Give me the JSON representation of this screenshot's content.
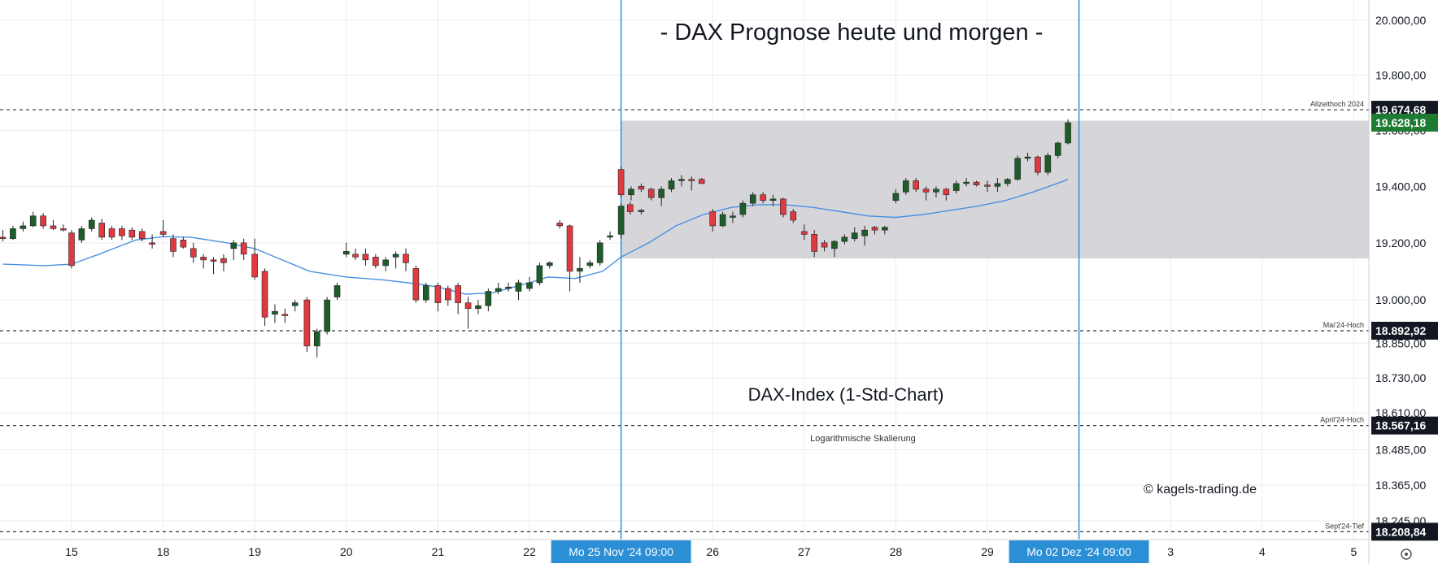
{
  "chart_data": {
    "type": "candlestick",
    "title": "- DAX Prognose heute und morgen -",
    "subtitle": "DAX-Index (1-Std-Chart)",
    "scale_note": "Logarithmische Skalierung",
    "credit": "© kagels-trading.de",
    "y_scale": "log",
    "ylim": [
      18180,
      20030
    ],
    "y_ticks": [
      {
        "value": 20000,
        "label": "20.000,00"
      },
      {
        "value": 19800,
        "label": "19.800,00"
      },
      {
        "value": 19600,
        "label": "19.600,00"
      },
      {
        "value": 19400,
        "label": "19.400,00"
      },
      {
        "value": 19200,
        "label": "19.200,00"
      },
      {
        "value": 19000,
        "label": "19.000,00"
      },
      {
        "value": 18850,
        "label": "18.850,00"
      },
      {
        "value": 18730,
        "label": "18.730,00"
      },
      {
        "value": 18610,
        "label": "18.610,00"
      },
      {
        "value": 18485,
        "label": "18.485,00"
      },
      {
        "value": 18365,
        "label": "18.365,00"
      },
      {
        "value": 18245,
        "label": "18.245,00"
      }
    ],
    "x_ticks": [
      {
        "day": 0,
        "label": "15"
      },
      {
        "day": 1,
        "label": "18"
      },
      {
        "day": 2,
        "label": "19"
      },
      {
        "day": 3,
        "label": "20"
      },
      {
        "day": 4,
        "label": "21"
      },
      {
        "day": 5,
        "label": "22"
      },
      {
        "day": 7,
        "label": "26"
      },
      {
        "day": 8,
        "label": "27"
      },
      {
        "day": 9,
        "label": "28"
      },
      {
        "day": 10,
        "label": "29"
      },
      {
        "day": 12,
        "label": "3"
      },
      {
        "day": 13,
        "label": "4"
      },
      {
        "day": 14,
        "label": "5"
      }
    ],
    "x_markers": [
      {
        "day": 6.0,
        "label": "Mo 25 Nov '24   09:00"
      },
      {
        "day": 11.0,
        "label": "Mo 02 Dez '24   09:00"
      }
    ],
    "levels": [
      {
        "name": "Allzeithoch 2024",
        "value": 19674.68,
        "label": "19.674,68",
        "color": "#131722",
        "line": "dashed"
      },
      {
        "name": "",
        "value": 19628.18,
        "label": "19.628,18",
        "color": "#1e7b33",
        "line": "none"
      },
      {
        "name": "Mai'24-Hoch",
        "value": 18892.92,
        "label": "18.892,92",
        "color": "#131722",
        "line": "dashed"
      },
      {
        "name": "April'24-Hoch",
        "value": 18567.16,
        "label": "18.567,16",
        "color": "#131722",
        "line": "dashed"
      },
      {
        "name": "Sept'24-Tief",
        "value": 18208.84,
        "label": "18.208,84",
        "color": "#131722",
        "line": "dashed"
      }
    ],
    "zone": {
      "low": 19145,
      "high": 19635,
      "from_day": 6.0,
      "to_day": 15.2,
      "color": "#d4d4d8"
    },
    "colors": {
      "up": "#1e5c2a",
      "down": "#e0393f",
      "ma": "#4a90e2",
      "marker": "#2b8fd6",
      "badge": "#2b8fd6"
    },
    "candles": [
      {
        "t": -0.75,
        "o": 19220,
        "h": 19245,
        "l": 19205,
        "c": 19215
      },
      {
        "t": -0.64,
        "o": 19215,
        "h": 19260,
        "l": 19210,
        "c": 19250
      },
      {
        "t": -0.53,
        "o": 19250,
        "h": 19275,
        "l": 19240,
        "c": 19260
      },
      {
        "t": -0.42,
        "o": 19260,
        "h": 19310,
        "l": 19255,
        "c": 19295
      },
      {
        "t": -0.31,
        "o": 19295,
        "h": 19305,
        "l": 19250,
        "c": 19260
      },
      {
        "t": -0.2,
        "o": 19260,
        "h": 19280,
        "l": 19245,
        "c": 19250
      },
      {
        "t": -0.09,
        "o": 19250,
        "h": 19265,
        "l": 19240,
        "c": 19245
      },
      {
        "t": 0.0,
        "o": 19235,
        "h": 19245,
        "l": 19110,
        "c": 19120
      },
      {
        "t": 0.11,
        "o": 19210,
        "h": 19260,
        "l": 19200,
        "c": 19250
      },
      {
        "t": 0.22,
        "o": 19250,
        "h": 19290,
        "l": 19240,
        "c": 19280
      },
      {
        "t": 0.33,
        "o": 19270,
        "h": 19285,
        "l": 19210,
        "c": 19220
      },
      {
        "t": 0.44,
        "o": 19250,
        "h": 19260,
        "l": 19210,
        "c": 19220
      },
      {
        "t": 0.55,
        "o": 19250,
        "h": 19260,
        "l": 19210,
        "c": 19225
      },
      {
        "t": 0.66,
        "o": 19245,
        "h": 19255,
        "l": 19210,
        "c": 19220
      },
      {
        "t": 0.77,
        "o": 19240,
        "h": 19250,
        "l": 19205,
        "c": 19215
      },
      {
        "t": 0.88,
        "o": 19200,
        "h": 19230,
        "l": 19180,
        "c": 19195
      },
      {
        "t": 1.0,
        "o": 19240,
        "h": 19280,
        "l": 19220,
        "c": 19230
      },
      {
        "t": 1.11,
        "o": 19215,
        "h": 19230,
        "l": 19150,
        "c": 19170
      },
      {
        "t": 1.22,
        "o": 19210,
        "h": 19220,
        "l": 19180,
        "c": 19185
      },
      {
        "t": 1.33,
        "o": 19180,
        "h": 19200,
        "l": 19130,
        "c": 19150
      },
      {
        "t": 1.44,
        "o": 19150,
        "h": 19160,
        "l": 19110,
        "c": 19140
      },
      {
        "t": 1.55,
        "o": 19140,
        "h": 19150,
        "l": 19090,
        "c": 19135
      },
      {
        "t": 1.66,
        "o": 19145,
        "h": 19160,
        "l": 19100,
        "c": 19130
      },
      {
        "t": 1.77,
        "o": 19180,
        "h": 19210,
        "l": 19140,
        "c": 19200
      },
      {
        "t": 1.88,
        "o": 19200,
        "h": 19215,
        "l": 19140,
        "c": 19160
      },
      {
        "t": 2.0,
        "o": 19160,
        "h": 19215,
        "l": 19070,
        "c": 19080
      },
      {
        "t": 2.11,
        "o": 19100,
        "h": 19110,
        "l": 18910,
        "c": 18940
      },
      {
        "t": 2.22,
        "o": 18950,
        "h": 18985,
        "l": 18920,
        "c": 18960
      },
      {
        "t": 2.33,
        "o": 18950,
        "h": 18970,
        "l": 18920,
        "c": 18945
      },
      {
        "t": 2.44,
        "o": 18980,
        "h": 19000,
        "l": 18960,
        "c": 18990
      },
      {
        "t": 2.57,
        "o": 19000,
        "h": 19010,
        "l": 18820,
        "c": 18840
      },
      {
        "t": 2.68,
        "o": 18840,
        "h": 18900,
        "l": 18800,
        "c": 18890
      },
      {
        "t": 2.79,
        "o": 18890,
        "h": 19010,
        "l": 18880,
        "c": 19000
      },
      {
        "t": 2.9,
        "o": 19010,
        "h": 19060,
        "l": 19000,
        "c": 19050
      },
      {
        "t": 3.0,
        "o": 19160,
        "h": 19200,
        "l": 19150,
        "c": 19170
      },
      {
        "t": 3.1,
        "o": 19160,
        "h": 19180,
        "l": 19140,
        "c": 19150
      },
      {
        "t": 3.21,
        "o": 19160,
        "h": 19180,
        "l": 19120,
        "c": 19140
      },
      {
        "t": 3.32,
        "o": 19150,
        "h": 19160,
        "l": 19110,
        "c": 19120
      },
      {
        "t": 3.43,
        "o": 19120,
        "h": 19150,
        "l": 19100,
        "c": 19140
      },
      {
        "t": 3.54,
        "o": 19150,
        "h": 19170,
        "l": 19110,
        "c": 19160
      },
      {
        "t": 3.65,
        "o": 19160,
        "h": 19180,
        "l": 19100,
        "c": 19130
      },
      {
        "t": 3.76,
        "o": 19110,
        "h": 19120,
        "l": 18990,
        "c": 19000
      },
      {
        "t": 3.87,
        "o": 19000,
        "h": 19060,
        "l": 18990,
        "c": 19050
      },
      {
        "t": 4.0,
        "o": 19050,
        "h": 19060,
        "l": 18960,
        "c": 18990
      },
      {
        "t": 4.11,
        "o": 19040,
        "h": 19050,
        "l": 18980,
        "c": 19000
      },
      {
        "t": 4.22,
        "o": 19050,
        "h": 19060,
        "l": 18950,
        "c": 18990
      },
      {
        "t": 4.33,
        "o": 18990,
        "h": 19010,
        "l": 18900,
        "c": 18970
      },
      {
        "t": 4.44,
        "o": 18970,
        "h": 19000,
        "l": 18950,
        "c": 18980
      },
      {
        "t": 4.55,
        "o": 18980,
        "h": 19040,
        "l": 18960,
        "c": 19030
      },
      {
        "t": 4.66,
        "o": 19030,
        "h": 19060,
        "l": 19020,
        "c": 19040
      },
      {
        "t": 4.77,
        "o": 19040,
        "h": 19060,
        "l": 19030,
        "c": 19045
      },
      {
        "t": 4.88,
        "o": 19030,
        "h": 19070,
        "l": 19000,
        "c": 19060
      },
      {
        "t": 5.0,
        "o": 19040,
        "h": 19080,
        "l": 19030,
        "c": 19060
      },
      {
        "t": 5.11,
        "o": 19060,
        "h": 19130,
        "l": 19050,
        "c": 19120
      },
      {
        "t": 5.22,
        "o": 19120,
        "h": 19135,
        "l": 19110,
        "c": 19130
      },
      {
        "t": 5.33,
        "o": 19270,
        "h": 19280,
        "l": 19250,
        "c": 19260
      },
      {
        "t": 5.44,
        "o": 19260,
        "h": 19265,
        "l": 19030,
        "c": 19100
      },
      {
        "t": 5.55,
        "o": 19100,
        "h": 19150,
        "l": 19060,
        "c": 19110
      },
      {
        "t": 5.66,
        "o": 19120,
        "h": 19140,
        "l": 19110,
        "c": 19130
      },
      {
        "t": 5.77,
        "o": 19130,
        "h": 19210,
        "l": 19120,
        "c": 19200
      },
      {
        "t": 5.88,
        "o": 19220,
        "h": 19240,
        "l": 19210,
        "c": 19225
      },
      {
        "t": 6.0,
        "o": 19230,
        "h": 19340,
        "l": 19215,
        "c": 19330
      },
      {
        "t": 6.1,
        "o": 19335,
        "h": 19345,
        "l": 19300,
        "c": 19310
      },
      {
        "t": 6.22,
        "o": 19310,
        "h": 19320,
        "l": 19300,
        "c": 19315
      },
      {
        "t": 6.0,
        "o": 19460,
        "h": 19470,
        "l": 19360,
        "c": 19370
      },
      {
        "t": 6.11,
        "o": 19370,
        "h": 19400,
        "l": 19350,
        "c": 19390
      },
      {
        "t": 6.22,
        "o": 19400,
        "h": 19410,
        "l": 19380,
        "c": 19390
      },
      {
        "t": 6.33,
        "o": 19390,
        "h": 19395,
        "l": 19350,
        "c": 19360
      },
      {
        "t": 6.44,
        "o": 19360,
        "h": 19400,
        "l": 19330,
        "c": 19390
      },
      {
        "t": 6.55,
        "o": 19390,
        "h": 19430,
        "l": 19380,
        "c": 19420
      },
      {
        "t": 6.66,
        "o": 19420,
        "h": 19440,
        "l": 19400,
        "c": 19425
      },
      {
        "t": 6.77,
        "o": 19425,
        "h": 19435,
        "l": 19385,
        "c": 19420
      },
      {
        "t": 6.88,
        "o": 19425,
        "h": 19430,
        "l": 19410,
        "c": 19410
      },
      {
        "t": 7.0,
        "o": 19310,
        "h": 19320,
        "l": 19240,
        "c": 19260
      },
      {
        "t": 7.11,
        "o": 19260,
        "h": 19310,
        "l": 19255,
        "c": 19300
      },
      {
        "t": 7.22,
        "o": 19290,
        "h": 19310,
        "l": 19270,
        "c": 19295
      },
      {
        "t": 7.33,
        "o": 19300,
        "h": 19350,
        "l": 19290,
        "c": 19340
      },
      {
        "t": 7.44,
        "o": 19340,
        "h": 19380,
        "l": 19330,
        "c": 19370
      },
      {
        "t": 7.55,
        "o": 19370,
        "h": 19380,
        "l": 19340,
        "c": 19350
      },
      {
        "t": 7.66,
        "o": 19350,
        "h": 19370,
        "l": 19330,
        "c": 19355
      },
      {
        "t": 7.77,
        "o": 19355,
        "h": 19360,
        "l": 19290,
        "c": 19300
      },
      {
        "t": 7.88,
        "o": 19310,
        "h": 19320,
        "l": 19270,
        "c": 19280
      },
      {
        "t": 8.0,
        "o": 19240,
        "h": 19265,
        "l": 19210,
        "c": 19230
      },
      {
        "t": 8.11,
        "o": 19230,
        "h": 19245,
        "l": 19150,
        "c": 19170
      },
      {
        "t": 8.22,
        "o": 19200,
        "h": 19210,
        "l": 19170,
        "c": 19185
      },
      {
        "t": 8.33,
        "o": 19180,
        "h": 19210,
        "l": 19150,
        "c": 19205
      },
      {
        "t": 8.44,
        "o": 19205,
        "h": 19230,
        "l": 19195,
        "c": 19220
      },
      {
        "t": 8.55,
        "o": 19215,
        "h": 19255,
        "l": 19205,
        "c": 19235
      },
      {
        "t": 8.66,
        "o": 19225,
        "h": 19260,
        "l": 19190,
        "c": 19245
      },
      {
        "t": 8.77,
        "o": 19255,
        "h": 19260,
        "l": 19230,
        "c": 19245
      },
      {
        "t": 8.88,
        "o": 19245,
        "h": 19260,
        "l": 19230,
        "c": 19255
      },
      {
        "t": 9.0,
        "o": 19350,
        "h": 19390,
        "l": 19340,
        "c": 19375
      },
      {
        "t": 9.11,
        "o": 19380,
        "h": 19430,
        "l": 19370,
        "c": 19420
      },
      {
        "t": 9.22,
        "o": 19420,
        "h": 19430,
        "l": 19380,
        "c": 19390
      },
      {
        "t": 9.33,
        "o": 19390,
        "h": 19400,
        "l": 19350,
        "c": 19380
      },
      {
        "t": 9.44,
        "o": 19380,
        "h": 19400,
        "l": 19360,
        "c": 19390
      },
      {
        "t": 9.55,
        "o": 19390,
        "h": 19395,
        "l": 19350,
        "c": 19370
      },
      {
        "t": 9.66,
        "o": 19385,
        "h": 19420,
        "l": 19375,
        "c": 19410
      },
      {
        "t": 9.77,
        "o": 19410,
        "h": 19430,
        "l": 19400,
        "c": 19415
      },
      {
        "t": 9.88,
        "o": 19415,
        "h": 19420,
        "l": 19400,
        "c": 19405
      },
      {
        "t": 10.0,
        "o": 19405,
        "h": 19420,
        "l": 19380,
        "c": 19400
      },
      {
        "t": 10.11,
        "o": 19400,
        "h": 19430,
        "l": 19380,
        "c": 19410
      },
      {
        "t": 10.22,
        "o": 19410,
        "h": 19430,
        "l": 19400,
        "c": 19425
      },
      {
        "t": 10.33,
        "o": 19425,
        "h": 19510,
        "l": 19420,
        "c": 19500
      },
      {
        "t": 10.44,
        "o": 19500,
        "h": 19520,
        "l": 19490,
        "c": 19505
      },
      {
        "t": 10.55,
        "o": 19505,
        "h": 19510,
        "l": 19440,
        "c": 19450
      },
      {
        "t": 10.66,
        "o": 19450,
        "h": 19520,
        "l": 19440,
        "c": 19510
      },
      {
        "t": 10.77,
        "o": 19510,
        "h": 19560,
        "l": 19500,
        "c": 19555
      },
      {
        "t": 10.88,
        "o": 19555,
        "h": 19640,
        "l": 19550,
        "c": 19628
      }
    ],
    "ma": [
      {
        "t": -0.75,
        "v": 19125
      },
      {
        "t": -0.3,
        "v": 19120
      },
      {
        "t": 0.0,
        "v": 19125
      },
      {
        "t": 0.3,
        "v": 19160
      },
      {
        "t": 0.7,
        "v": 19210
      },
      {
        "t": 1.0,
        "v": 19222
      },
      {
        "t": 1.3,
        "v": 19220
      },
      {
        "t": 1.7,
        "v": 19200
      },
      {
        "t": 2.0,
        "v": 19180
      },
      {
        "t": 2.3,
        "v": 19140
      },
      {
        "t": 2.6,
        "v": 19100
      },
      {
        "t": 3.0,
        "v": 19080
      },
      {
        "t": 3.4,
        "v": 19070
      },
      {
        "t": 3.8,
        "v": 19055
      },
      {
        "t": 4.0,
        "v": 19045
      },
      {
        "t": 4.3,
        "v": 19020
      },
      {
        "t": 4.6,
        "v": 19025
      },
      {
        "t": 5.0,
        "v": 19060
      },
      {
        "t": 5.2,
        "v": 19080
      },
      {
        "t": 5.5,
        "v": 19075
      },
      {
        "t": 5.8,
        "v": 19100
      },
      {
        "t": 6.0,
        "v": 19150
      },
      {
        "t": 6.3,
        "v": 19200
      },
      {
        "t": 6.6,
        "v": 19260
      },
      {
        "t": 6.9,
        "v": 19300
      },
      {
        "t": 7.2,
        "v": 19325
      },
      {
        "t": 7.5,
        "v": 19335
      },
      {
        "t": 7.8,
        "v": 19335
      },
      {
        "t": 8.1,
        "v": 19325
      },
      {
        "t": 8.4,
        "v": 19310
      },
      {
        "t": 8.7,
        "v": 19295
      },
      {
        "t": 9.0,
        "v": 19290
      },
      {
        "t": 9.3,
        "v": 19300
      },
      {
        "t": 9.6,
        "v": 19315
      },
      {
        "t": 9.9,
        "v": 19330
      },
      {
        "t": 10.2,
        "v": 19350
      },
      {
        "t": 10.5,
        "v": 19380
      },
      {
        "t": 10.8,
        "v": 19415
      },
      {
        "t": 10.88,
        "v": 19425
      }
    ]
  }
}
